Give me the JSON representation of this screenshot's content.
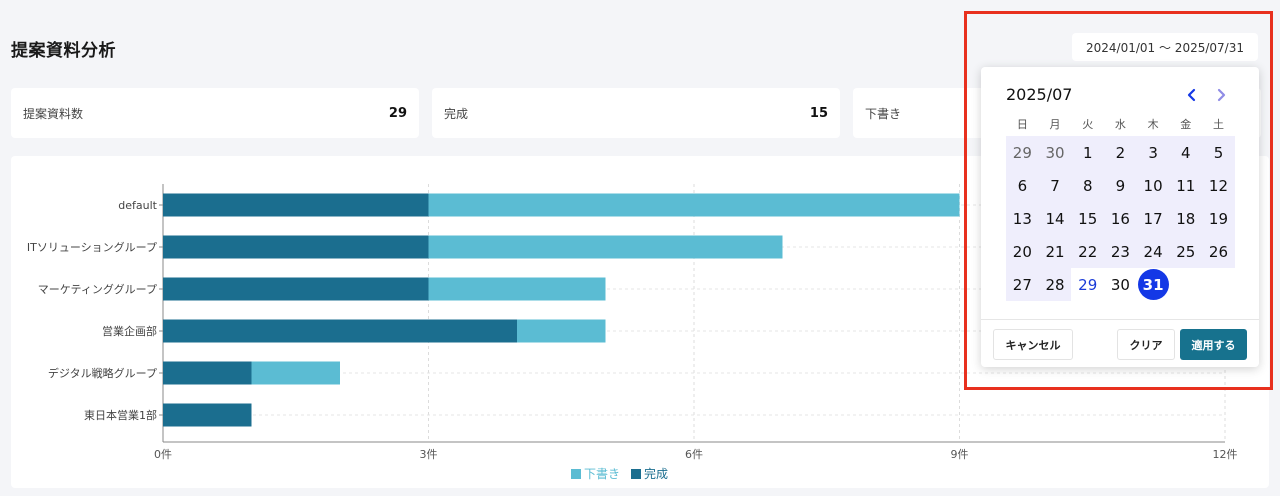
{
  "page": {
    "title": "提案資料分析"
  },
  "date_range": {
    "value": "2024/01/01 ～ 2025/07/31"
  },
  "stats": [
    {
      "label": "提案資料数",
      "value": "29"
    },
    {
      "label": "完成",
      "value": "15"
    },
    {
      "label": "下書き",
      "value": ""
    }
  ],
  "chart_data": {
    "type": "bar",
    "orientation": "horizontal",
    "stacked": true,
    "categories": [
      "default",
      "ITソリューショングループ",
      "マーケティンググループ",
      "営業企画部",
      "デジタル戦略グループ",
      "東日本営業1部"
    ],
    "series": [
      {
        "name": "完成",
        "color": "#1b6e8f",
        "values": [
          3,
          3,
          3,
          4,
          1,
          1
        ]
      },
      {
        "name": "下書き",
        "color": "#5bbcd3",
        "values": [
          6,
          4,
          2,
          1,
          1,
          0
        ]
      }
    ],
    "xlim": [
      0,
      12
    ],
    "xticks": [
      "0件",
      "3件",
      "6件",
      "9件",
      "12件"
    ],
    "legend": [
      {
        "label": "下書き",
        "color": "#5bbcd3"
      },
      {
        "label": "完成",
        "color": "#1b6e8f"
      }
    ],
    "legend_position": "bottom",
    "grid": true
  },
  "calendar": {
    "month_label": "2025/07",
    "prev_icon": "chevron-left-icon",
    "next_icon": "chevron-right-icon",
    "weekdays": [
      "日",
      "月",
      "火",
      "水",
      "木",
      "金",
      "土"
    ],
    "days": [
      {
        "label": "29",
        "type": "other"
      },
      {
        "label": "30",
        "type": "other"
      },
      {
        "label": "1",
        "type": "in"
      },
      {
        "label": "2",
        "type": "in"
      },
      {
        "label": "3",
        "type": "in"
      },
      {
        "label": "4",
        "type": "in"
      },
      {
        "label": "5",
        "type": "in"
      },
      {
        "label": "6",
        "type": "in"
      },
      {
        "label": "7",
        "type": "in"
      },
      {
        "label": "8",
        "type": "in"
      },
      {
        "label": "9",
        "type": "in"
      },
      {
        "label": "10",
        "type": "in"
      },
      {
        "label": "11",
        "type": "in"
      },
      {
        "label": "12",
        "type": "in"
      },
      {
        "label": "13",
        "type": "in"
      },
      {
        "label": "14",
        "type": "in"
      },
      {
        "label": "15",
        "type": "in"
      },
      {
        "label": "16",
        "type": "in"
      },
      {
        "label": "17",
        "type": "in"
      },
      {
        "label": "18",
        "type": "in"
      },
      {
        "label": "19",
        "type": "in"
      },
      {
        "label": "20",
        "type": "in"
      },
      {
        "label": "21",
        "type": "in"
      },
      {
        "label": "22",
        "type": "in"
      },
      {
        "label": "23",
        "type": "in"
      },
      {
        "label": "24",
        "type": "in"
      },
      {
        "label": "25",
        "type": "in"
      },
      {
        "label": "26",
        "type": "in"
      },
      {
        "label": "27",
        "type": "in"
      },
      {
        "label": "28",
        "type": "in"
      },
      {
        "label": "29",
        "type": "today"
      },
      {
        "label": "30",
        "type": "plain"
      },
      {
        "label": "31",
        "type": "selected"
      },
      {
        "label": "",
        "type": "blank"
      },
      {
        "label": "",
        "type": "blank"
      }
    ],
    "cancel_label": "キャンセル",
    "clear_label": "クリア",
    "apply_label": "適用する",
    "accent_color": "#1438e6",
    "highlight_color": "#e8301e"
  }
}
